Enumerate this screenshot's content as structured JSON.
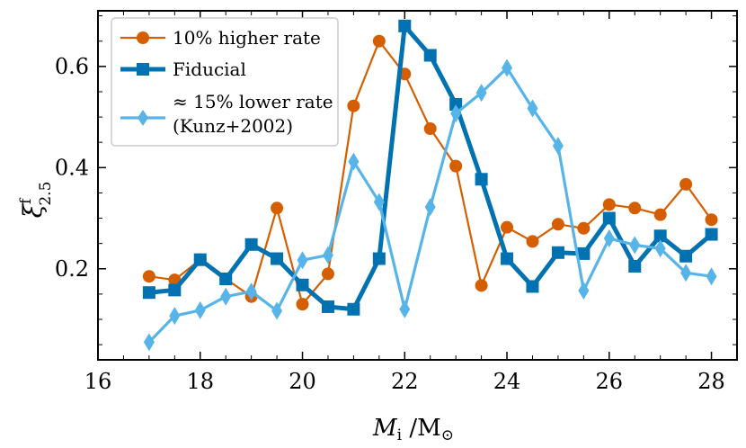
{
  "chart_data": {
    "type": "line",
    "x": [
      17,
      17.5,
      18,
      18.5,
      19,
      19.5,
      20,
      20.5,
      21,
      21.5,
      22,
      22.5,
      23,
      23.5,
      24,
      24.5,
      25,
      25.5,
      26,
      26.5,
      27,
      27.5,
      28
    ],
    "xlim": [
      16,
      28.5
    ],
    "ylim": [
      0.02,
      0.71
    ],
    "xticks": [
      16,
      18,
      20,
      22,
      24,
      26,
      28
    ],
    "xtick_labels": [
      "16",
      "18",
      "20",
      "22",
      "24",
      "26",
      "28"
    ],
    "yticks": [
      0.2,
      0.4,
      0.6
    ],
    "ytick_labels": [
      "0.2",
      "0.4",
      "0.6"
    ],
    "xlabel": {
      "main": "M",
      "sub": "i",
      "rest": " /M",
      "rest_sub": "⊙"
    },
    "ylabel": {
      "main": "ξ",
      "sup": "f",
      "sub": "2.5"
    },
    "legend_position": "top-left",
    "series": [
      {
        "name": "10% higher rate",
        "color": "#d55e00",
        "marker": "circle",
        "values": [
          0.185,
          0.178,
          0.218,
          0.18,
          0.145,
          0.32,
          0.13,
          0.19,
          0.522,
          0.65,
          0.585,
          0.477,
          0.403,
          0.167,
          0.282,
          0.254,
          0.288,
          0.28,
          0.327,
          0.32,
          0.307,
          0.367,
          0.297
        ]
      },
      {
        "name": "Fiducial",
        "color": "#0072b2",
        "marker": "square",
        "values": [
          0.153,
          0.158,
          0.218,
          0.18,
          0.248,
          0.22,
          0.168,
          0.125,
          0.12,
          0.22,
          0.68,
          0.622,
          0.525,
          0.377,
          0.22,
          0.165,
          0.232,
          0.23,
          0.3,
          0.205,
          0.265,
          0.225,
          0.268
        ]
      },
      {
        "name": "≈ 15% lower rate",
        "name_line2": "(Kunz+2002)",
        "color": "#56b4e9",
        "marker": "diamond",
        "values": [
          0.055,
          0.107,
          0.118,
          0.145,
          0.155,
          0.117,
          0.217,
          0.227,
          0.412,
          0.332,
          0.12,
          0.322,
          0.507,
          0.548,
          0.597,
          0.517,
          0.443,
          0.157,
          0.26,
          0.247,
          0.24,
          0.192,
          0.185
        ]
      }
    ]
  }
}
